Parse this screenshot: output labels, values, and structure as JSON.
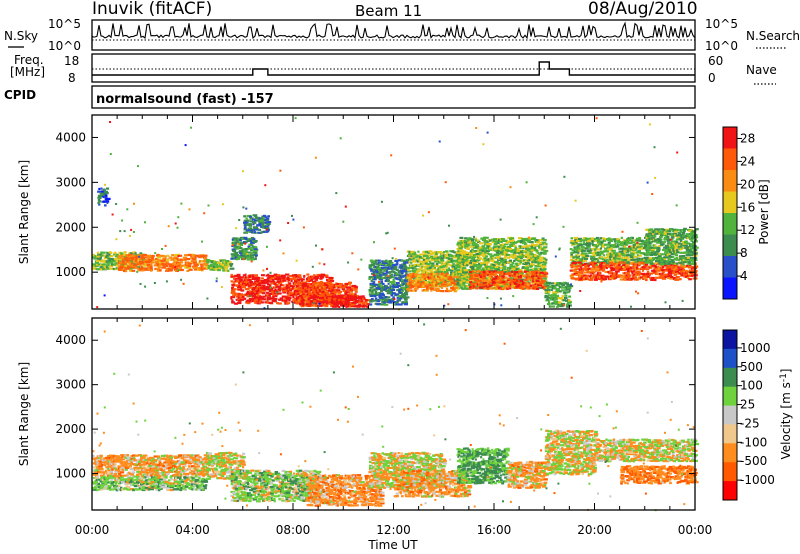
{
  "header": {
    "station": "Inuvik (fitACF)",
    "beam": "Beam 11",
    "date": "08/Aug/2010"
  },
  "noise_panel": {
    "left_label": "N.Sky",
    "left_ticks": [
      "10^5",
      "10^0"
    ],
    "right_label": "N.Search",
    "right_ticks": [
      "10^5",
      "10^0"
    ]
  },
  "freq_panel": {
    "left_label_1": "Freq.",
    "left_label_2": "[MHz]",
    "left_ticks": [
      "18",
      "8"
    ],
    "right_label": "Nave",
    "right_ticks": [
      "60",
      "0"
    ]
  },
  "cpid_panel": {
    "label": "CPID",
    "text": "normalsound (fast) -157"
  },
  "time_axis": {
    "title": "Time UT",
    "ticks": [
      "00:00",
      "04:00",
      "08:00",
      "12:00",
      "16:00",
      "20:00",
      "00:00"
    ]
  },
  "colors": {
    "power": [
      "#0a14ff",
      "#2850c8",
      "#3c8c50",
      "#50b43c",
      "#e6c81e",
      "#fa8c14",
      "#ff5a0a",
      "#f01414"
    ],
    "velocity": [
      "#ff0000",
      "#ff5a00",
      "#ff8c1e",
      "#f0c88c",
      "#c8c8c8",
      "#6ed23c",
      "#3c8c50",
      "#1e50c8",
      "#0a14a0"
    ]
  },
  "chart_data": [
    {
      "type": "heatmap",
      "title": "",
      "xlabel": "Time UT",
      "ylabel": "Slant Range [km]",
      "xlim": [
        "00:00",
        "24:00"
      ],
      "ylim": [
        180,
        4500
      ],
      "yticks": [
        "1000",
        "2000",
        "3000",
        "4000"
      ],
      "colorbar_label": "Power [dB]",
      "colorbar_ticks": [
        "4",
        "8",
        "12",
        "16",
        "20",
        "24",
        "28"
      ],
      "colorbar_range": [
        0,
        30
      ],
      "blobs": [
        {
          "t": [
            0.0,
            2.0
          ],
          "r": [
            1480,
            1080
          ],
          "v": 14
        },
        {
          "t": [
            1.0,
            4.5
          ],
          "r": [
            1420,
            1050
          ],
          "v": 22
        },
        {
          "t": [
            4.5,
            5.5
          ],
          "r": [
            1300,
            1050
          ],
          "v": 14
        },
        {
          "t": [
            5.5,
            6.5
          ],
          "r": [
            1800,
            1300
          ],
          "v": 10
        },
        {
          "t": [
            6.0,
            7.0
          ],
          "r": [
            2300,
            1900
          ],
          "v": 8
        },
        {
          "t": [
            5.5,
            9.5
          ],
          "r": [
            980,
            320
          ],
          "v": 28
        },
        {
          "t": [
            8.0,
            10.5
          ],
          "r": [
            800,
            260
          ],
          "v": 26
        },
        {
          "t": [
            9.5,
            11.0
          ],
          "r": [
            500,
            250
          ],
          "v": 29
        },
        {
          "t": [
            11.0,
            12.5
          ],
          "r": [
            1300,
            300
          ],
          "v": 8
        },
        {
          "t": [
            12.5,
            15.0
          ],
          "r": [
            1500,
            700
          ],
          "v": 14
        },
        {
          "t": [
            12.5,
            14.5
          ],
          "r": [
            1000,
            600
          ],
          "v": 21
        },
        {
          "t": [
            14.5,
            18.0
          ],
          "r": [
            1800,
            650
          ],
          "v": 14
        },
        {
          "t": [
            15.0,
            18.0
          ],
          "r": [
            1050,
            650
          ],
          "v": 24
        },
        {
          "t": [
            18.0,
            19.0
          ],
          "r": [
            800,
            250
          ],
          "v": 12
        },
        {
          "t": [
            19.0,
            22.0
          ],
          "r": [
            1800,
            1200
          ],
          "v": 13
        },
        {
          "t": [
            19.0,
            24.0
          ],
          "r": [
            1250,
            850
          ],
          "v": 25
        },
        {
          "t": [
            22.0,
            24.0
          ],
          "r": [
            2000,
            1200
          ],
          "v": 12
        },
        {
          "t": [
            0.2,
            0.6
          ],
          "r": [
            2900,
            2500
          ],
          "v": 6
        }
      ]
    },
    {
      "type": "heatmap",
      "title": "",
      "xlabel": "Time UT",
      "ylabel": "Slant Range [km]",
      "xlim": [
        "00:00",
        "24:00"
      ],
      "ylim": [
        180,
        4500
      ],
      "yticks": [
        "1000",
        "2000",
        "3000",
        "4000"
      ],
      "colorbar_label": "Velocity [m s^-1]",
      "colorbar_ticks": [
        "1000",
        "500",
        "100",
        "25",
        "-25",
        "-100",
        "-500",
        "-1000"
      ],
      "colorbar_range": [
        -1000,
        1000
      ],
      "blobs": [
        {
          "t": [
            0.0,
            4.5
          ],
          "r": [
            1450,
            950
          ],
          "v": -150
        },
        {
          "t": [
            0.0,
            4.5
          ],
          "r": [
            950,
            650
          ],
          "v": 150
        },
        {
          "t": [
            4.5,
            6.0
          ],
          "r": [
            1500,
            900
          ],
          "v": 0
        },
        {
          "t": [
            5.5,
            9.0
          ],
          "r": [
            1100,
            400
          ],
          "v": 120
        },
        {
          "t": [
            8.5,
            11.5
          ],
          "r": [
            1000,
            300
          ],
          "v": -200
        },
        {
          "t": [
            11.0,
            14.0
          ],
          "r": [
            1500,
            700
          ],
          "v": 0
        },
        {
          "t": [
            12.0,
            15.0
          ],
          "r": [
            1100,
            500
          ],
          "v": -150
        },
        {
          "t": [
            14.5,
            16.5
          ],
          "r": [
            1600,
            800
          ],
          "v": 300
        },
        {
          "t": [
            16.5,
            18.0
          ],
          "r": [
            1300,
            700
          ],
          "v": -150
        },
        {
          "t": [
            18.0,
            20.0
          ],
          "r": [
            2000,
            1000
          ],
          "v": 0
        },
        {
          "t": [
            20.0,
            24.0
          ],
          "r": [
            1800,
            1300
          ],
          "v": 0
        },
        {
          "t": [
            21.0,
            24.0
          ],
          "r": [
            1200,
            800
          ],
          "v": -300
        }
      ]
    }
  ]
}
